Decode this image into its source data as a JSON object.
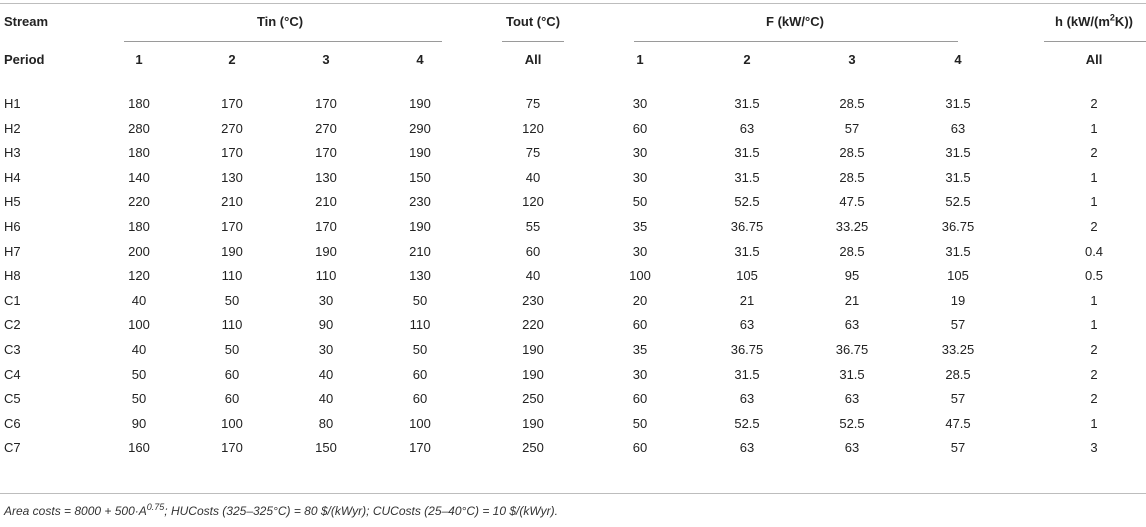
{
  "header": {
    "stream": "Stream",
    "period": "Period",
    "tin": "Tin (°C)",
    "tout": "Tout (°C)",
    "f": "F (kW/°C)",
    "h_prefix": "h (kW/(m",
    "h_sup": "2",
    "h_suffix": "K))",
    "sub": [
      "1",
      "2",
      "3",
      "4",
      "All",
      "1",
      "2",
      "3",
      "4",
      "All"
    ]
  },
  "rows": [
    {
      "name": "H1",
      "vals": [
        "180",
        "170",
        "170",
        "190",
        "75",
        "30",
        "31.5",
        "28.5",
        "31.5",
        "2"
      ]
    },
    {
      "name": "H2",
      "vals": [
        "280",
        "270",
        "270",
        "290",
        "120",
        "60",
        "63",
        "57",
        "63",
        "1"
      ]
    },
    {
      "name": "H3",
      "vals": [
        "180",
        "170",
        "170",
        "190",
        "75",
        "30",
        "31.5",
        "28.5",
        "31.5",
        "2"
      ]
    },
    {
      "name": "H4",
      "vals": [
        "140",
        "130",
        "130",
        "150",
        "40",
        "30",
        "31.5",
        "28.5",
        "31.5",
        "1"
      ]
    },
    {
      "name": "H5",
      "vals": [
        "220",
        "210",
        "210",
        "230",
        "120",
        "50",
        "52.5",
        "47.5",
        "52.5",
        "1"
      ]
    },
    {
      "name": "H6",
      "vals": [
        "180",
        "170",
        "170",
        "190",
        "55",
        "35",
        "36.75",
        "33.25",
        "36.75",
        "2"
      ]
    },
    {
      "name": "H7",
      "vals": [
        "200",
        "190",
        "190",
        "210",
        "60",
        "30",
        "31.5",
        "28.5",
        "31.5",
        "0.4"
      ]
    },
    {
      "name": "H8",
      "vals": [
        "120",
        "110",
        "110",
        "130",
        "40",
        "100",
        "105",
        "95",
        "105",
        "0.5"
      ]
    },
    {
      "name": "C1",
      "vals": [
        "40",
        "50",
        "30",
        "50",
        "230",
        "20",
        "21",
        "21",
        "19",
        "1"
      ]
    },
    {
      "name": "C2",
      "vals": [
        "100",
        "110",
        "90",
        "110",
        "220",
        "60",
        "63",
        "63",
        "57",
        "1"
      ]
    },
    {
      "name": "C3",
      "vals": [
        "40",
        "50",
        "30",
        "50",
        "190",
        "35",
        "36.75",
        "36.75",
        "33.25",
        "2"
      ]
    },
    {
      "name": "C4",
      "vals": [
        "50",
        "60",
        "40",
        "60",
        "190",
        "30",
        "31.5",
        "31.5",
        "28.5",
        "2"
      ]
    },
    {
      "name": "C5",
      "vals": [
        "50",
        "60",
        "40",
        "60",
        "250",
        "60",
        "63",
        "63",
        "57",
        "2"
      ]
    },
    {
      "name": "C6",
      "vals": [
        "90",
        "100",
        "80",
        "100",
        "190",
        "50",
        "52.5",
        "52.5",
        "47.5",
        "1"
      ]
    },
    {
      "name": "C7",
      "vals": [
        "160",
        "170",
        "150",
        "170",
        "250",
        "60",
        "63",
        "63",
        "57",
        "3"
      ]
    }
  ],
  "note": {
    "a": "Area costs = 8000 + 500·A",
    "sup": "0.75",
    "b": "; HUCosts (325–325°C) = 80 $/(kWyr); CUCosts (25–40°C) = 10 $/(kWyr)."
  }
}
